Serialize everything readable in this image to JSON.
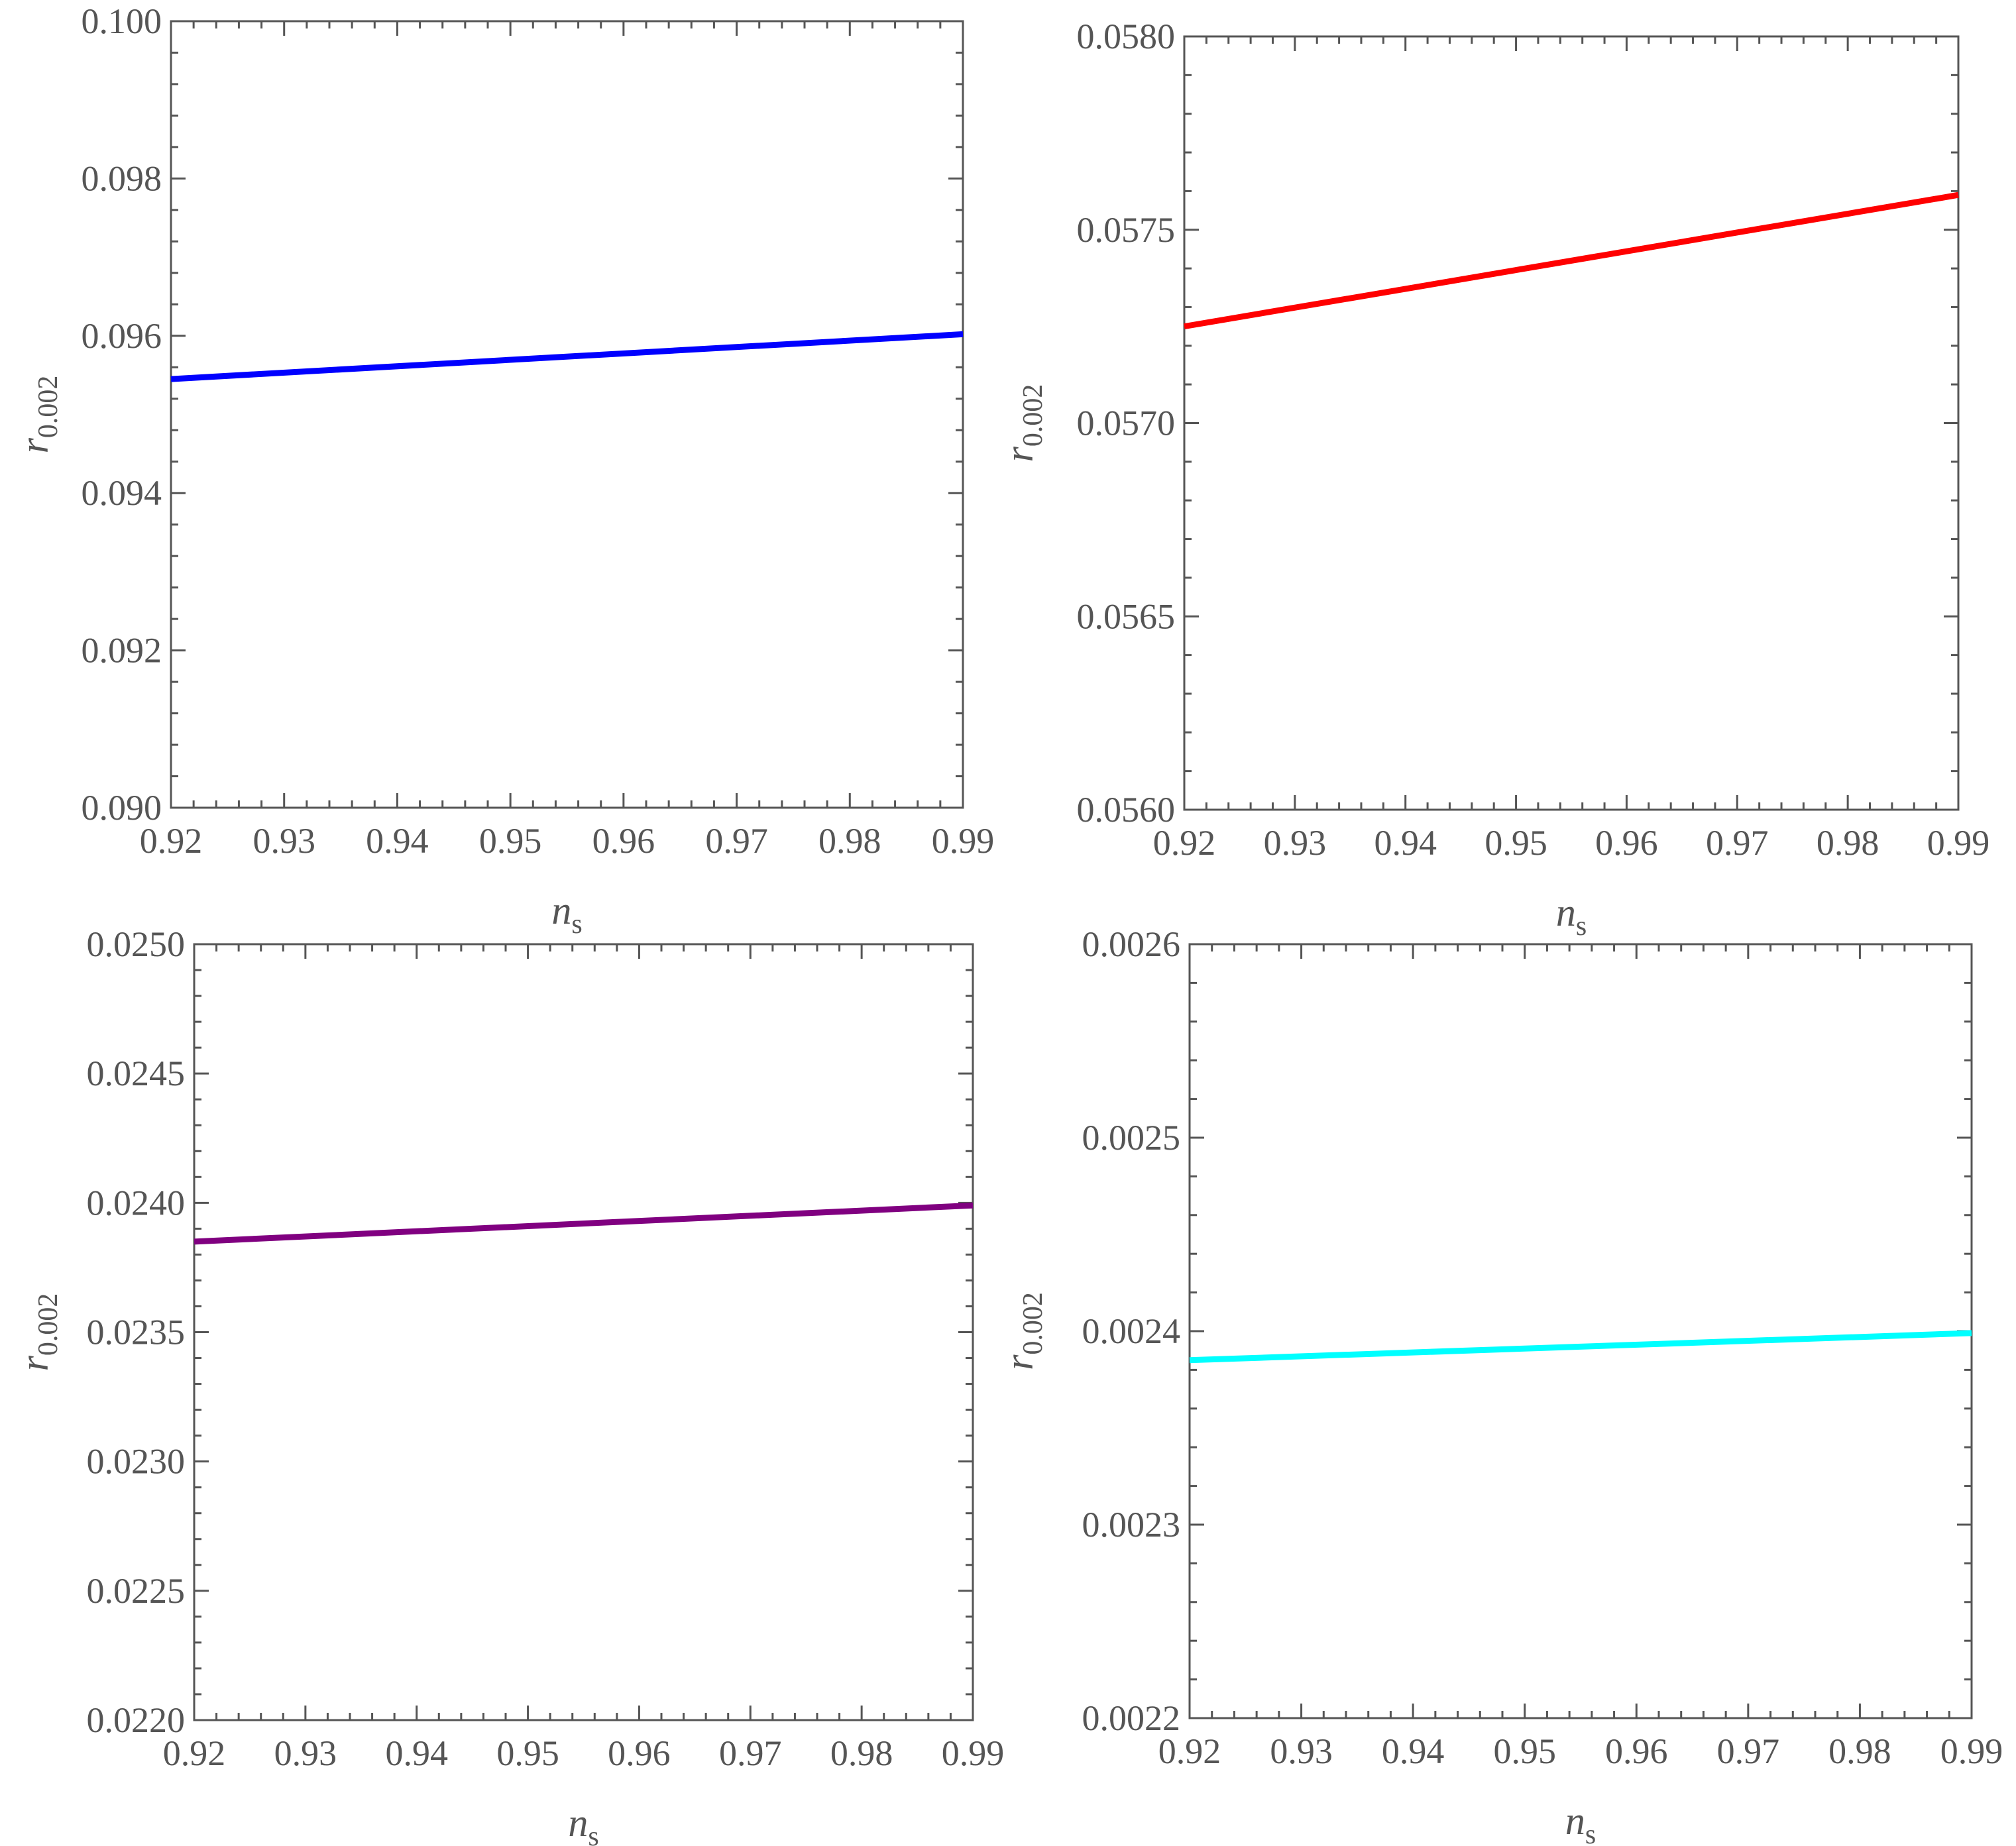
{
  "chart_data": [
    {
      "type": "line",
      "xlabel": "n",
      "xlabel_sub": "s",
      "ylabel": "r",
      "ylabel_sub": "0.002",
      "xlim": [
        0.92,
        0.99
      ],
      "ylim": [
        0.09,
        0.1
      ],
      "xticks": [
        "0.92",
        "0.93",
        "0.94",
        "0.95",
        "0.96",
        "0.97",
        "0.98",
        "0.99"
      ],
      "yticks": [
        "0.090",
        "0.092",
        "0.094",
        "0.096",
        "0.098",
        "0.100"
      ],
      "grid": false,
      "color": "#0000ff",
      "series": [
        {
          "x": [
            0.92,
            0.99
          ],
          "y": [
            0.09545,
            0.09602
          ]
        }
      ]
    },
    {
      "type": "line",
      "xlabel": "n",
      "xlabel_sub": "s",
      "ylabel": "r",
      "ylabel_sub": "0.002",
      "xlim": [
        0.92,
        0.99
      ],
      "ylim": [
        0.056,
        0.058
      ],
      "xticks": [
        "0.92",
        "0.93",
        "0.94",
        "0.95",
        "0.96",
        "0.97",
        "0.98",
        "0.99"
      ],
      "yticks": [
        "0.0560",
        "0.0565",
        "0.0570",
        "0.0575",
        "0.0580"
      ],
      "grid": false,
      "color": "#ff0000",
      "series": [
        {
          "x": [
            0.92,
            0.99
          ],
          "y": [
            0.05725,
            0.05759
          ]
        }
      ]
    },
    {
      "type": "line",
      "xlabel": "n",
      "xlabel_sub": "s",
      "ylabel": "r",
      "ylabel_sub": "0.002",
      "xlim": [
        0.92,
        0.99
      ],
      "ylim": [
        0.022,
        0.025
      ],
      "xticks": [
        "0.92",
        "0.93",
        "0.94",
        "0.95",
        "0.96",
        "0.97",
        "0.98",
        "0.99"
      ],
      "yticks": [
        "0.0220",
        "0.0225",
        "0.0230",
        "0.0235",
        "0.0240",
        "0.0245",
        "0.0250"
      ],
      "grid": false,
      "color": "#800080",
      "series": [
        {
          "x": [
            0.92,
            0.99
          ],
          "y": [
            0.02385,
            0.02399
          ]
        }
      ]
    },
    {
      "type": "line",
      "xlabel": "n",
      "xlabel_sub": "s",
      "ylabel": "r",
      "ylabel_sub": "0.002",
      "xlim": [
        0.92,
        0.99
      ],
      "ylim": [
        0.0022,
        0.0026
      ],
      "xticks": [
        "0.92",
        "0.93",
        "0.94",
        "0.95",
        "0.96",
        "0.97",
        "0.98",
        "0.99"
      ],
      "yticks": [
        "0.0022",
        "0.0023",
        "0.0024",
        "0.0025",
        "0.0026"
      ],
      "grid": false,
      "color": "#00ffff",
      "series": [
        {
          "x": [
            0.92,
            0.99
          ],
          "y": [
            0.002385,
            0.002399
          ]
        }
      ]
    }
  ]
}
